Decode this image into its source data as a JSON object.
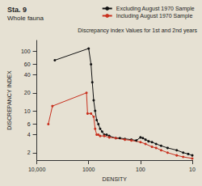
{
  "chart_data": {
    "type": "line",
    "title": "Sta. 9",
    "subtitle": "Whole fauna",
    "annotations": [
      "Discrepancy index Values for 1st and 2nd years"
    ],
    "x_label": "DENSITY",
    "y_label": "DISCREPANCY INDEX",
    "log": true,
    "grid": false,
    "legend": "upper right",
    "xlim": [
      10000,
      10
    ],
    "xticks": [
      {
        "value": 10000,
        "label": "10,000"
      },
      1000,
      100,
      10
    ],
    "ylim": [
      1.5,
      150
    ],
    "yticks": [
      2,
      4,
      6,
      10,
      20,
      40,
      60,
      100
    ],
    "series": [
      {
        "name": "Excluding August 1970 Sample",
        "color": "#111111",
        "marker": "circle",
        "line_style": "solid",
        "x": [
          4500,
          1000,
          900,
          850,
          800,
          750,
          700,
          650,
          600,
          550,
          500,
          450,
          400,
          300,
          250,
          200,
          150,
          120,
          100,
          90,
          80,
          70,
          60,
          50,
          40,
          30,
          20,
          15,
          12,
          10
        ],
        "values": [
          70,
          110,
          60,
          30,
          15,
          10,
          7,
          6,
          5,
          4.5,
          4,
          4,
          3.8,
          3.5,
          3.5,
          3.4,
          3.3,
          3.2,
          3.6,
          3.5,
          3.3,
          3.1,
          3,
          2.8,
          2.6,
          2.4,
          2.2,
          2,
          1.9,
          1.8
        ]
      },
      {
        "name": "Including August 1970 Sample",
        "color": "#c8301e",
        "marker": "circle",
        "line_style": "solid",
        "x": [
          6000,
          5000,
          1100,
          1050,
          900,
          800,
          750,
          700,
          650,
          600,
          500,
          400,
          300,
          200,
          150,
          100,
          80,
          60,
          50,
          40,
          30,
          20,
          15,
          10
        ],
        "values": [
          6,
          12,
          20,
          9,
          9,
          8,
          5,
          4,
          4,
          3.8,
          3.8,
          3.6,
          3.5,
          3.3,
          3.2,
          3,
          2.8,
          2.5,
          2.4,
          2.2,
          2,
          1.8,
          1.7,
          1.6
        ]
      }
    ]
  }
}
